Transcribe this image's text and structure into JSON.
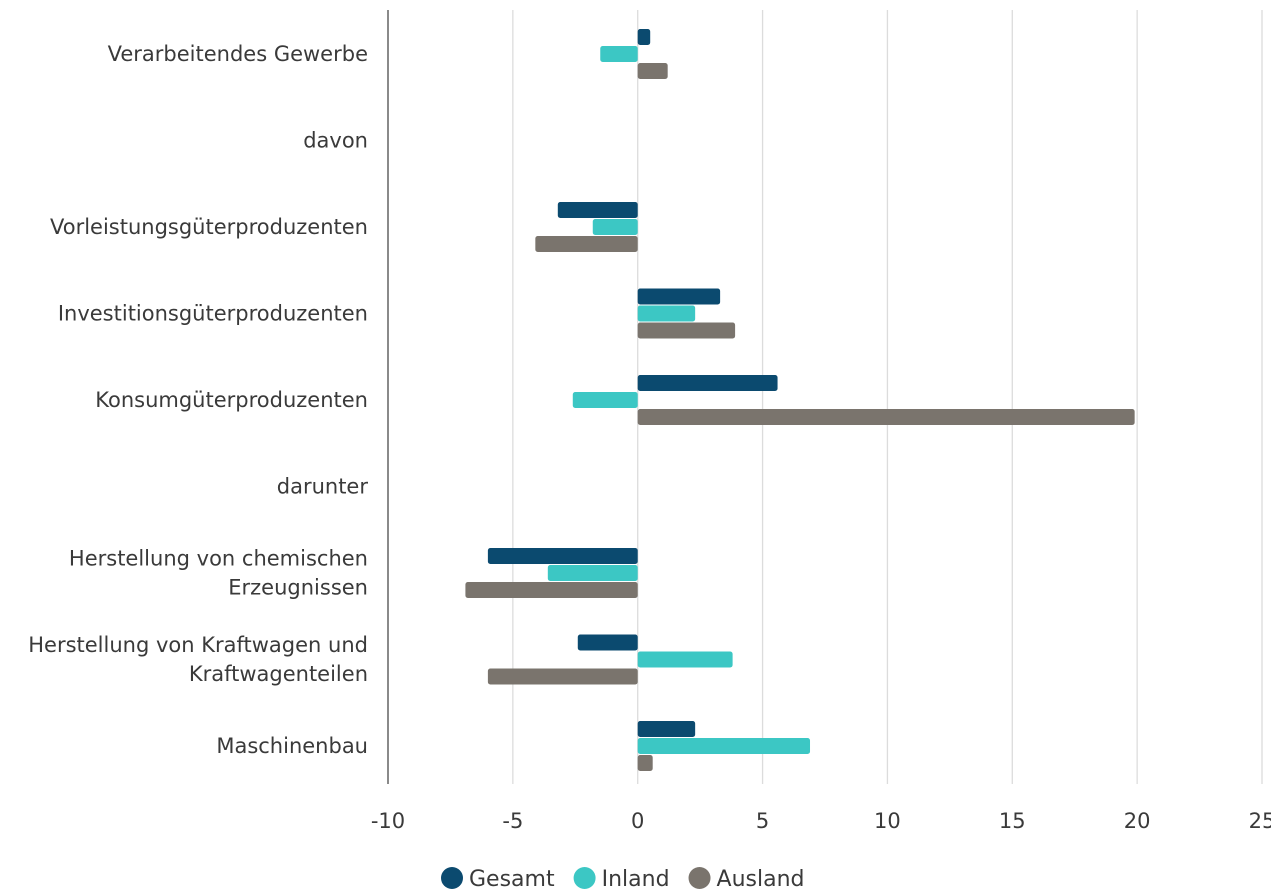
{
  "chart_data": {
    "type": "bar",
    "orientation": "horizontal",
    "categories": [
      [
        "Verarbeitendes Gewerbe"
      ],
      [
        "davon"
      ],
      [
        "Vorleistungsgüterproduzenten"
      ],
      [
        "Investitionsgüterproduzenten"
      ],
      [
        "Konsumgüterproduzenten"
      ],
      [
        "darunter"
      ],
      [
        "Herstellung von chemischen",
        "Erzeugnissen"
      ],
      [
        "Herstellung von Kraftwagen und",
        "Kraftwagenteilen"
      ],
      [
        "Maschinenbau"
      ]
    ],
    "series": [
      {
        "name": "Gesamt",
        "color": "#0b4a6f",
        "values": [
          0.5,
          null,
          -3.2,
          3.3,
          5.6,
          null,
          -6.0,
          -2.4,
          2.3
        ]
      },
      {
        "name": "Inland",
        "color": "#3cc7c4",
        "values": [
          -1.5,
          null,
          -1.8,
          2.3,
          -2.6,
          null,
          -3.6,
          3.8,
          6.9
        ]
      },
      {
        "name": "Ausland",
        "color": "#7a746d",
        "values": [
          1.2,
          null,
          -4.1,
          3.9,
          19.9,
          null,
          -6.9,
          -6.0,
          0.6
        ]
      }
    ],
    "xlim": [
      -10,
      25
    ],
    "xticks": [
      -10,
      -5,
      0,
      5,
      10,
      15,
      20,
      25
    ],
    "xtick_labels": [
      "-10",
      "-5",
      "0",
      "5",
      "10",
      "15",
      "20",
      "25"
    ],
    "grid": true,
    "legend": "bottom-center"
  }
}
